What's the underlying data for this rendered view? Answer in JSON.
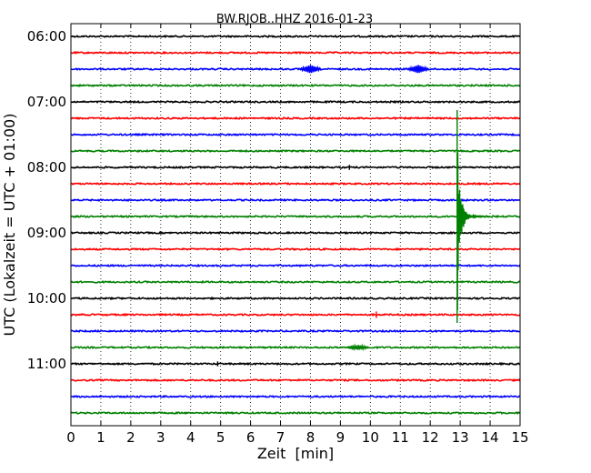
{
  "chart_data": {
    "type": "line",
    "title": "BW.RJOB..HHZ 2016-01-23",
    "xlabel": "Zeit  [min]",
    "ylabel": "UTC (Lokalzeit = UTC + 01:00)",
    "xlim": [
      0,
      15
    ],
    "x_ticks": [
      "0",
      "1",
      "2",
      "3",
      "4",
      "5",
      "6",
      "7",
      "8",
      "9",
      "10",
      "11",
      "12",
      "13",
      "14",
      "15"
    ],
    "y_ticks": [
      "06:00",
      "07:00",
      "08:00",
      "09:00",
      "10:00",
      "11:00"
    ],
    "trace_interval_min": 15,
    "trace_start_times": [
      "06:00",
      "06:15",
      "06:30",
      "06:45",
      "07:00",
      "07:15",
      "07:30",
      "07:45",
      "08:00",
      "08:15",
      "08:30",
      "08:45",
      "09:00",
      "09:15",
      "09:30",
      "09:45",
      "10:00",
      "10:15",
      "10:30",
      "10:45",
      "11:00",
      "11:15",
      "11:30",
      "11:45"
    ],
    "trace_colors": [
      "#000000",
      "#ff0000",
      "#0000ff",
      "#008000"
    ],
    "grid": true,
    "events": [
      {
        "trace": "08:45",
        "minute": 12.9,
        "type": "earthquake",
        "peak_amplitude_rows": 6.5,
        "coda_end_minute": 14.0
      },
      {
        "trace": "06:30",
        "minute": 8.0,
        "type": "noise-burst",
        "peak_amplitude_rows": 0.25
      },
      {
        "trace": "06:30",
        "minute": 11.6,
        "type": "noise-burst",
        "peak_amplitude_rows": 0.25
      },
      {
        "trace": "08:00",
        "minute": 9.3,
        "type": "spike",
        "peak_amplitude_rows": 0.15
      },
      {
        "trace": "10:15",
        "minute": 10.2,
        "type": "spike",
        "peak_amplitude_rows": 0.2
      },
      {
        "trace": "10:45",
        "minute": 9.6,
        "type": "noise-burst",
        "peak_amplitude_rows": 0.15
      },
      {
        "trace": "11:00",
        "minute": 4.9,
        "type": "spike",
        "peak_amplitude_rows": 0.15
      }
    ]
  }
}
